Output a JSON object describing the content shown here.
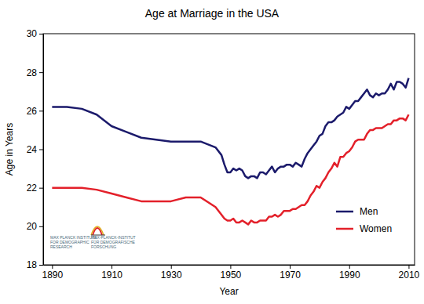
{
  "chart_data": {
    "type": "line",
    "title": "Age at Marriage in the USA",
    "x_label": "Year",
    "y_label": "Age in Years",
    "x": [
      1890,
      1895,
      1900,
      1905,
      1910,
      1915,
      1920,
      1925,
      1930,
      1935,
      1940,
      1945,
      1947,
      1948,
      1949,
      1950,
      1951,
      1952,
      1953,
      1954,
      1955,
      1956,
      1957,
      1958,
      1959,
      1960,
      1961,
      1962,
      1963,
      1964,
      1965,
      1966,
      1967,
      1968,
      1969,
      1970,
      1971,
      1972,
      1973,
      1974,
      1975,
      1976,
      1977,
      1978,
      1979,
      1980,
      1981,
      1982,
      1983,
      1984,
      1985,
      1986,
      1987,
      1988,
      1989,
      1990,
      1991,
      1992,
      1993,
      1994,
      1995,
      1996,
      1997,
      1998,
      1999,
      2000,
      2001,
      2002,
      2003,
      2004,
      2005,
      2006,
      2007,
      2008,
      2009,
      2010
    ],
    "series": [
      {
        "name": "Men",
        "color": "#1b1a6b",
        "values": [
          26.2,
          26.2,
          26.1,
          25.8,
          25.2,
          24.9,
          24.6,
          24.5,
          24.4,
          24.4,
          24.4,
          24.1,
          23.7,
          23.2,
          22.8,
          22.8,
          23.0,
          22.9,
          23.0,
          22.9,
          22.6,
          22.5,
          22.6,
          22.6,
          22.5,
          22.8,
          22.8,
          22.7,
          22.9,
          23.1,
          22.8,
          23.0,
          23.1,
          23.1,
          23.2,
          23.2,
          23.1,
          23.3,
          23.2,
          23.1,
          23.5,
          23.8,
          24.0,
          24.2,
          24.4,
          24.7,
          24.8,
          25.2,
          25.4,
          25.4,
          25.5,
          25.7,
          25.8,
          25.9,
          26.2,
          26.1,
          26.3,
          26.5,
          26.5,
          26.7,
          26.9,
          27.1,
          26.8,
          26.7,
          26.9,
          26.8,
          26.9,
          26.9,
          27.1,
          27.4,
          27.1,
          27.5,
          27.5,
          27.4,
          27.2,
          27.7
        ]
      },
      {
        "name": "Women",
        "color": "#e3202a",
        "values": [
          22.0,
          22.0,
          22.0,
          21.9,
          21.7,
          21.5,
          21.3,
          21.3,
          21.3,
          21.5,
          21.5,
          21.0,
          20.6,
          20.4,
          20.3,
          20.3,
          20.4,
          20.2,
          20.2,
          20.3,
          20.2,
          20.1,
          20.3,
          20.2,
          20.2,
          20.3,
          20.3,
          20.3,
          20.5,
          20.5,
          20.6,
          20.5,
          20.6,
          20.8,
          20.8,
          20.8,
          20.9,
          20.9,
          21.0,
          21.1,
          21.1,
          21.3,
          21.6,
          21.8,
          22.1,
          22.0,
          22.3,
          22.5,
          22.8,
          23.0,
          23.3,
          23.1,
          23.6,
          23.6,
          23.8,
          23.9,
          24.1,
          24.4,
          24.5,
          24.5,
          24.5,
          24.8,
          25.0,
          25.0,
          25.1,
          25.1,
          25.1,
          25.2,
          25.3,
          25.3,
          25.5,
          25.5,
          25.6,
          25.6,
          25.5,
          25.8
        ]
      }
    ],
    "xlim": [
      1887,
      2012
    ],
    "xticks": [
      1890,
      1910,
      1930,
      1950,
      1970,
      1990,
      2010
    ],
    "ylim": [
      18,
      30
    ],
    "yticks": [
      18,
      20,
      22,
      24,
      26,
      28,
      30
    ],
    "grid": false,
    "legend": "lower right",
    "annotations": [
      "MAX PLANCK INSTITUTE",
      "FOR DEMOGRAPHIC",
      "RESEARCH",
      "MAX-PLANCK-INSTITUT",
      "FÜR DEMOGRAFISCHE",
      "FORSCHUNG"
    ]
  }
}
